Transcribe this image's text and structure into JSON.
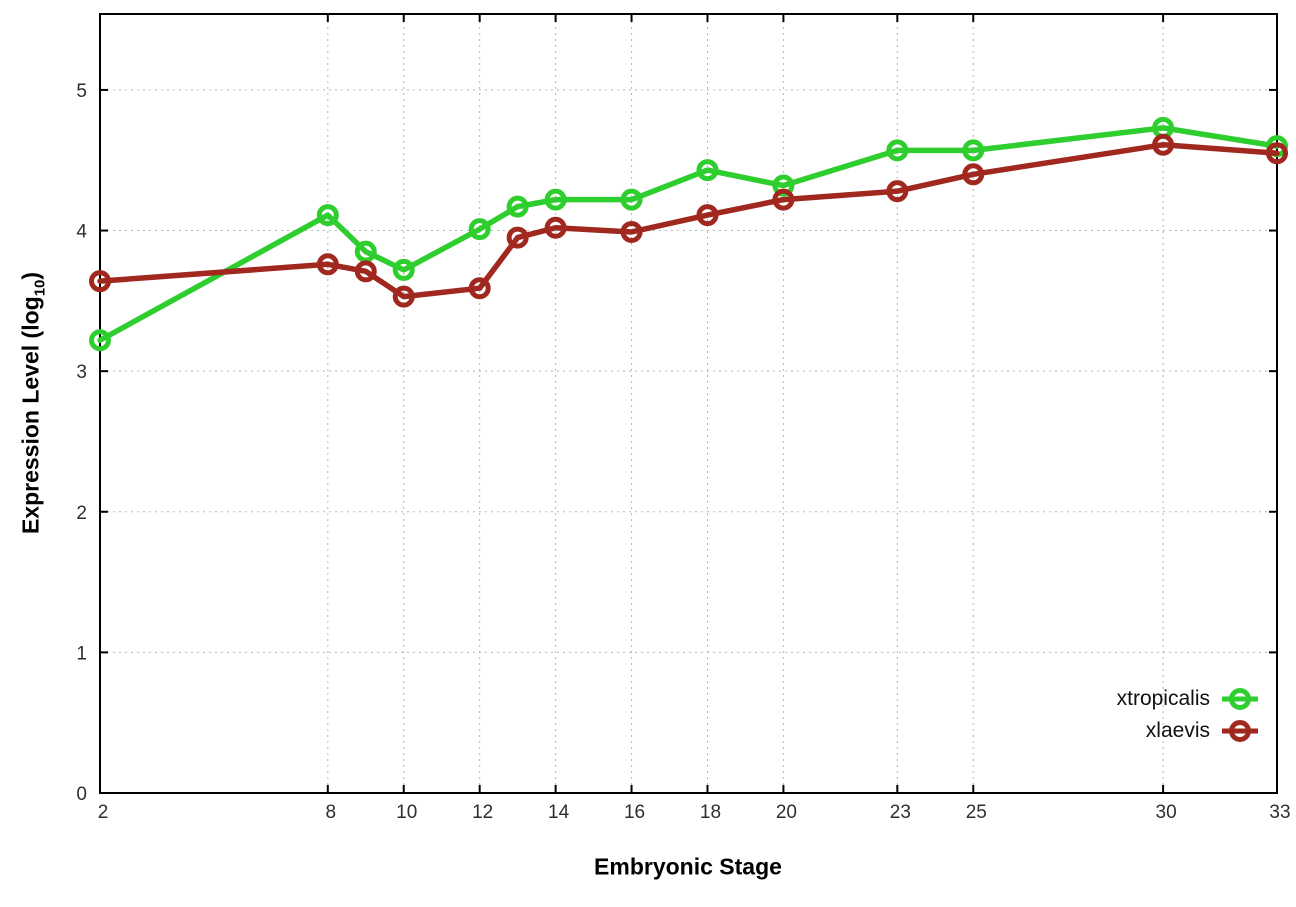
{
  "chart_data": {
    "type": "line",
    "title": "",
    "xlabel": "Embryonic Stage",
    "ylabel": {
      "prefix": "Expression Level (log",
      "sub": "10",
      "suffix": ")"
    },
    "x": [
      2,
      8,
      9,
      10,
      12,
      13,
      14,
      16,
      18,
      20,
      23,
      25,
      30,
      33
    ],
    "series": [
      {
        "name": "xtropicalis",
        "color": "#2fce2f",
        "values": [
          3.22,
          4.11,
          3.85,
          3.72,
          4.01,
          4.17,
          4.22,
          4.22,
          4.43,
          4.32,
          4.57,
          4.57,
          4.73,
          4.6
        ]
      },
      {
        "name": "xlaevis",
        "color": "#a0281f",
        "values": [
          3.64,
          3.76,
          3.71,
          3.53,
          3.59,
          3.95,
          4.02,
          3.99,
          4.11,
          4.22,
          4.28,
          4.4,
          4.61,
          4.55
        ]
      }
    ],
    "xticks": [
      2,
      8,
      10,
      12,
      14,
      16,
      18,
      20,
      23,
      25,
      30,
      33
    ],
    "yticks": [
      0,
      1,
      2,
      3,
      4,
      5
    ],
    "xlim": [
      2,
      33
    ],
    "ylim": [
      0,
      5.54
    ],
    "grid": true,
    "grid_color": "#b5b5b5",
    "tick_label_color": "#2e2e2e",
    "legend_position": "bottom-right"
  }
}
